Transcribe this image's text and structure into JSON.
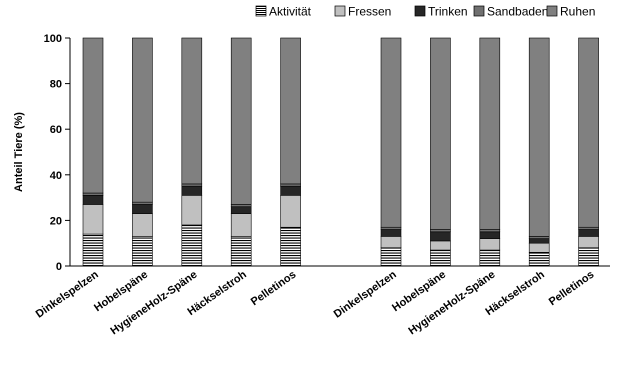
{
  "chart_data": {
    "type": "bar",
    "stacked": true,
    "ylabel": "Anteil Tiere (%)",
    "ylim": [
      0,
      100
    ],
    "yticks": [
      0,
      20,
      40,
      60,
      80,
      100
    ],
    "legend_position": "top-right",
    "groups": [
      {
        "categories": [
          "Dinkelspelzen",
          "Hobelspäne",
          "HygieneHolz-Späne",
          "Häckselstroh",
          "Pelletinos"
        ]
      },
      {
        "categories": [
          "Dinkelspelzen",
          "Hobelspäne",
          "HygieneHolz-Späne",
          "Häckselstroh",
          "Pelletinos"
        ]
      }
    ],
    "series": [
      {
        "name": "Aktivität",
        "pattern": "horizontal-stripes",
        "color": "#ffffff",
        "values": [
          14,
          13,
          18,
          13,
          17,
          8,
          7,
          7,
          6,
          8
        ]
      },
      {
        "name": "Fressen",
        "pattern": "solid",
        "color": "#c0c0c0",
        "values": [
          13,
          10,
          13,
          10,
          14,
          5,
          4,
          5,
          4,
          5
        ]
      },
      {
        "name": "Trinken",
        "pattern": "solid",
        "color": "#262626",
        "values": [
          4,
          4,
          4,
          3,
          4,
          3,
          4,
          3,
          2,
          3
        ]
      },
      {
        "name": "Sandbaden",
        "pattern": "solid",
        "color": "#707070",
        "values": [
          1,
          1,
          1,
          1,
          1,
          1,
          1,
          1,
          1,
          1
        ]
      },
      {
        "name": "Ruhen",
        "pattern": "solid",
        "color": "#808080",
        "values": [
          68,
          72,
          64,
          73,
          64,
          83,
          84,
          84,
          87,
          83
        ]
      }
    ]
  }
}
